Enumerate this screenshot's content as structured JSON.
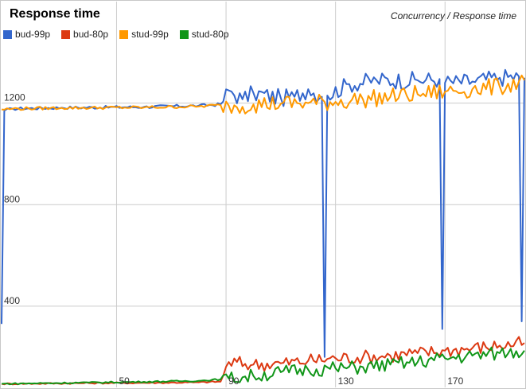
{
  "chart_data": {
    "type": "line",
    "title": "Response time",
    "subtitle": "Concurrency / Response time",
    "xlabel": "",
    "ylabel": "",
    "xlim": [
      8,
      199
    ],
    "ylim": [
      80,
      1600
    ],
    "x_ticks": [
      50,
      90,
      130,
      170
    ],
    "y_ticks": [
      400,
      800,
      1200
    ],
    "grid": true,
    "legend_position": "top-left",
    "series": [
      {
        "name": "bud-99p",
        "color": "#3366cc",
        "keypoints": [
          [
            8,
            330
          ],
          [
            9,
            1170
          ],
          [
            12,
            1178
          ],
          [
            30,
            1182
          ],
          [
            60,
            1185
          ],
          [
            80,
            1190
          ],
          [
            88,
            1195
          ],
          [
            91,
            1250
          ],
          [
            96,
            1215
          ],
          [
            100,
            1240
          ],
          [
            110,
            1220
          ],
          [
            115,
            1225
          ],
          [
            120,
            1255
          ],
          [
            125,
            1225
          ],
          [
            126,
            200
          ],
          [
            127,
            1230
          ],
          [
            135,
            1275
          ],
          [
            145,
            1290
          ],
          [
            160,
            1290
          ],
          [
            168,
            1295
          ],
          [
            169,
            310
          ],
          [
            170,
            1280
          ],
          [
            180,
            1285
          ],
          [
            190,
            1300
          ],
          [
            197,
            1305
          ],
          [
            198,
            340
          ],
          [
            199,
            1300
          ]
        ]
      },
      {
        "name": "bud-80p",
        "color": "#dc3912",
        "keypoints": [
          [
            8,
            94
          ],
          [
            20,
            95
          ],
          [
            40,
            97
          ],
          [
            60,
            98
          ],
          [
            80,
            100
          ],
          [
            88,
            103
          ],
          [
            91,
            180
          ],
          [
            100,
            170
          ],
          [
            110,
            175
          ],
          [
            120,
            185
          ],
          [
            130,
            195
          ],
          [
            140,
            200
          ],
          [
            150,
            205
          ],
          [
            160,
            215
          ],
          [
            170,
            225
          ],
          [
            180,
            235
          ],
          [
            190,
            245
          ],
          [
            199,
            255
          ]
        ]
      },
      {
        "name": "stud-99p",
        "color": "#ff9900",
        "keypoints": [
          [
            8,
            1175
          ],
          [
            12,
            1178
          ],
          [
            30,
            1181
          ],
          [
            60,
            1183
          ],
          [
            80,
            1187
          ],
          [
            88,
            1192
          ],
          [
            91,
            1190
          ],
          [
            100,
            1195
          ],
          [
            110,
            1198
          ],
          [
            120,
            1200
          ],
          [
            130,
            1205
          ],
          [
            140,
            1215
          ],
          [
            150,
            1225
          ],
          [
            160,
            1235
          ],
          [
            170,
            1245
          ],
          [
            180,
            1255
          ],
          [
            190,
            1265
          ],
          [
            199,
            1290
          ]
        ]
      },
      {
        "name": "stud-80p",
        "color": "#109618",
        "keypoints": [
          [
            8,
            94
          ],
          [
            20,
            96
          ],
          [
            40,
            99
          ],
          [
            60,
            102
          ],
          [
            80,
            106
          ],
          [
            88,
            112
          ],
          [
            91,
            115
          ],
          [
            100,
            125
          ],
          [
            110,
            140
          ],
          [
            120,
            150
          ],
          [
            130,
            155
          ],
          [
            140,
            160
          ],
          [
            150,
            170
          ],
          [
            160,
            180
          ],
          [
            170,
            195
          ],
          [
            180,
            205
          ],
          [
            190,
            215
          ],
          [
            199,
            225
          ]
        ]
      }
    ]
  }
}
